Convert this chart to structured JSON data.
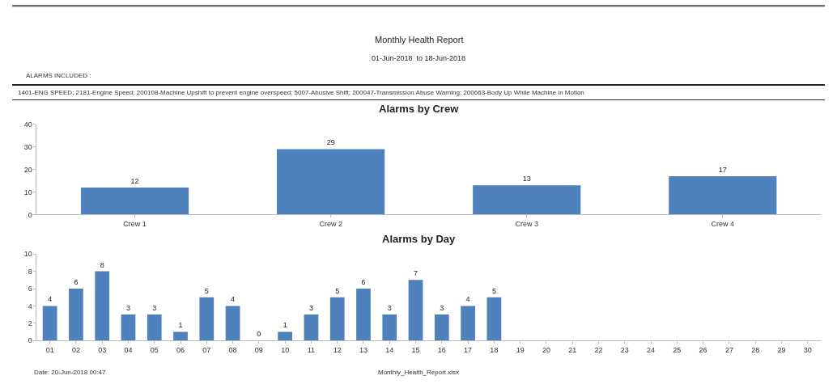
{
  "chart_data": [
    {
      "type": "bar",
      "title": "Alarms by Crew",
      "categories": [
        "Crew 1",
        "Crew 2",
        "Crew 3",
        "Crew 4"
      ],
      "values": [
        12,
        29,
        13,
        17
      ],
      "color": "#4f81bd",
      "ylim": [
        0,
        40
      ],
      "yticks": [
        0,
        10,
        20,
        30,
        40
      ],
      "data_labels": true,
      "annotations": [
        "Monthly Health Report",
        "01-Jun-2018  to 18-Jun-2018",
        "ALARMS INCLUDED :",
        "1401-ENG SPEED; 2181-Engine Speed; 200108-Machine Upshift to prevent engine overspeed; 5007-Abusive Shift; 200047-Transmission Abuse Warning; 200663-Body Up While Machine in Motion"
      ]
    },
    {
      "type": "bar",
      "title": "Alarms by Day",
      "categories": [
        "01",
        "02",
        "03",
        "04",
        "05",
        "06",
        "07",
        "08",
        "09",
        "10",
        "11",
        "12",
        "13",
        "14",
        "15",
        "16",
        "17",
        "18",
        "19",
        "20",
        "21",
        "22",
        "23",
        "24",
        "25",
        "26",
        "27",
        "28",
        "29",
        "30"
      ],
      "values": [
        4,
        6,
        8,
        3,
        3,
        1,
        5,
        4,
        0,
        1,
        3,
        5,
        6,
        3,
        7,
        3,
        4,
        5,
        null,
        null,
        null,
        null,
        null,
        null,
        null,
        null,
        null,
        null,
        null,
        null
      ],
      "color": "#4f81bd",
      "ylim": [
        0,
        10
      ],
      "yticks": [
        0,
        2,
        4,
        6,
        8,
        10
      ],
      "data_labels": true,
      "annotations": [
        "Date: 20-Jun-2018 00:47",
        "Monthly_Health_Report.xlsx"
      ]
    }
  ]
}
